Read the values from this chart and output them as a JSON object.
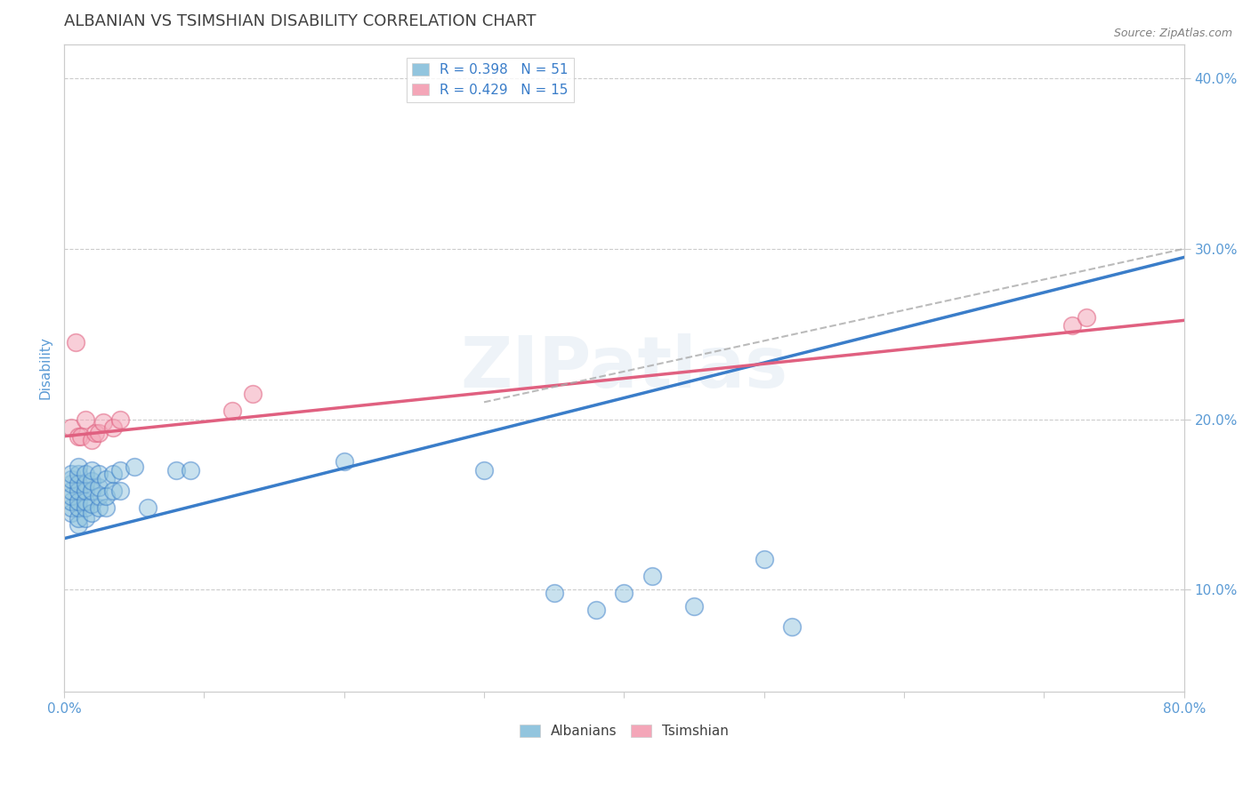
{
  "title": "ALBANIAN VS TSIMSHIAN DISABILITY CORRELATION CHART",
  "source": "Source: ZipAtlas.com",
  "ylabel": "Disability",
  "xlabel": "",
  "xlim": [
    0.0,
    0.8
  ],
  "ylim": [
    0.04,
    0.42
  ],
  "x_ticks": [
    0.0,
    0.1,
    0.2,
    0.3,
    0.4,
    0.5,
    0.6,
    0.7,
    0.8
  ],
  "y_ticks": [
    0.1,
    0.2,
    0.3,
    0.4
  ],
  "y_tick_labels": [
    "10.0%",
    "20.0%",
    "30.0%",
    "40.0%"
  ],
  "legend_r1": "R = 0.398   N = 51",
  "legend_r2": "R = 0.429   N = 15",
  "blue_color": "#92C5DE",
  "pink_color": "#F4A6B8",
  "blue_line_color": "#3A7DC9",
  "pink_line_color": "#E06080",
  "watermark": "ZIPatlas",
  "albanians_x": [
    0.005,
    0.005,
    0.005,
    0.005,
    0.005,
    0.005,
    0.005,
    0.005,
    0.01,
    0.01,
    0.01,
    0.01,
    0.01,
    0.01,
    0.01,
    0.01,
    0.015,
    0.015,
    0.015,
    0.015,
    0.015,
    0.015,
    0.02,
    0.02,
    0.02,
    0.02,
    0.02,
    0.025,
    0.025,
    0.025,
    0.025,
    0.03,
    0.03,
    0.03,
    0.035,
    0.035,
    0.04,
    0.04,
    0.05,
    0.06,
    0.08,
    0.09,
    0.2,
    0.3,
    0.35,
    0.38,
    0.4,
    0.42,
    0.45,
    0.5,
    0.52
  ],
  "albanians_y": [
    0.145,
    0.148,
    0.152,
    0.155,
    0.158,
    0.162,
    0.165,
    0.168,
    0.138,
    0.142,
    0.148,
    0.152,
    0.158,
    0.162,
    0.168,
    0.172,
    0.142,
    0.148,
    0.152,
    0.158,
    0.162,
    0.168,
    0.145,
    0.15,
    0.158,
    0.164,
    0.17,
    0.148,
    0.155,
    0.16,
    0.168,
    0.148,
    0.155,
    0.165,
    0.158,
    0.168,
    0.158,
    0.17,
    0.172,
    0.148,
    0.17,
    0.17,
    0.175,
    0.17,
    0.098,
    0.088,
    0.098,
    0.108,
    0.09,
    0.118,
    0.078
  ],
  "tsimshian_x": [
    0.005,
    0.008,
    0.01,
    0.012,
    0.015,
    0.02,
    0.022,
    0.025,
    0.028,
    0.035,
    0.04,
    0.12,
    0.135,
    0.72,
    0.73
  ],
  "tsimshian_y": [
    0.195,
    0.245,
    0.19,
    0.19,
    0.2,
    0.188,
    0.192,
    0.192,
    0.198,
    0.195,
    0.2,
    0.205,
    0.215,
    0.255,
    0.26
  ],
  "blue_trend_x": [
    0.0,
    0.8
  ],
  "blue_trend_y": [
    0.13,
    0.295
  ],
  "pink_trend_x": [
    0.0,
    0.8
  ],
  "pink_trend_y": [
    0.19,
    0.258
  ],
  "dashed_trend_x": [
    0.3,
    0.8
  ],
  "dashed_trend_y": [
    0.21,
    0.3
  ],
  "title_color": "#404040",
  "axis_color": "#5B9BD5",
  "tick_color": "#5B9BD5",
  "background_color": "#FFFFFF",
  "grid_color": "#CCCCCC"
}
